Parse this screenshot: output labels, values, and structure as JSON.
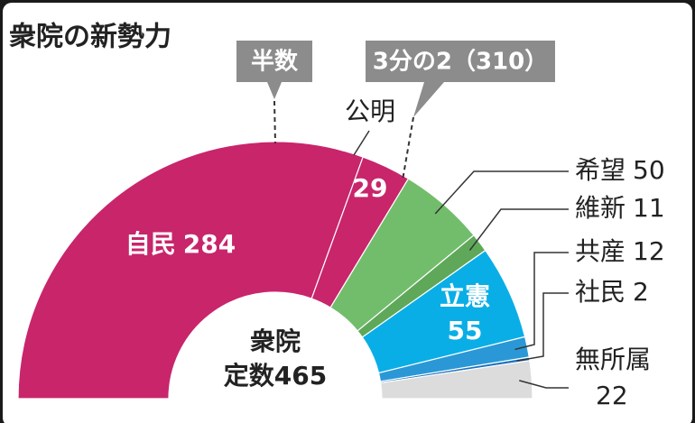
{
  "chart_data": {
    "type": "half-donut",
    "title": "衆院の新勢力",
    "center_label": [
      "衆院",
      "定数465"
    ],
    "categories": [
      "自民",
      "公明",
      "希望",
      "維新",
      "立憲",
      "共産",
      "社民",
      "無所属"
    ],
    "values": [
      284,
      29,
      50,
      11,
      55,
      12,
      2,
      22
    ],
    "colors": [
      "#c8256b",
      "#c8256b",
      "#72bd6c",
      "#5fa85a",
      "#0aaee6",
      "#2a98d6",
      "#1a74c0",
      "#dcdcdc"
    ],
    "markers": [
      {
        "label": "半数",
        "value": 232.5
      },
      {
        "label": "3分の2（310）",
        "value": 310
      }
    ]
  }
}
